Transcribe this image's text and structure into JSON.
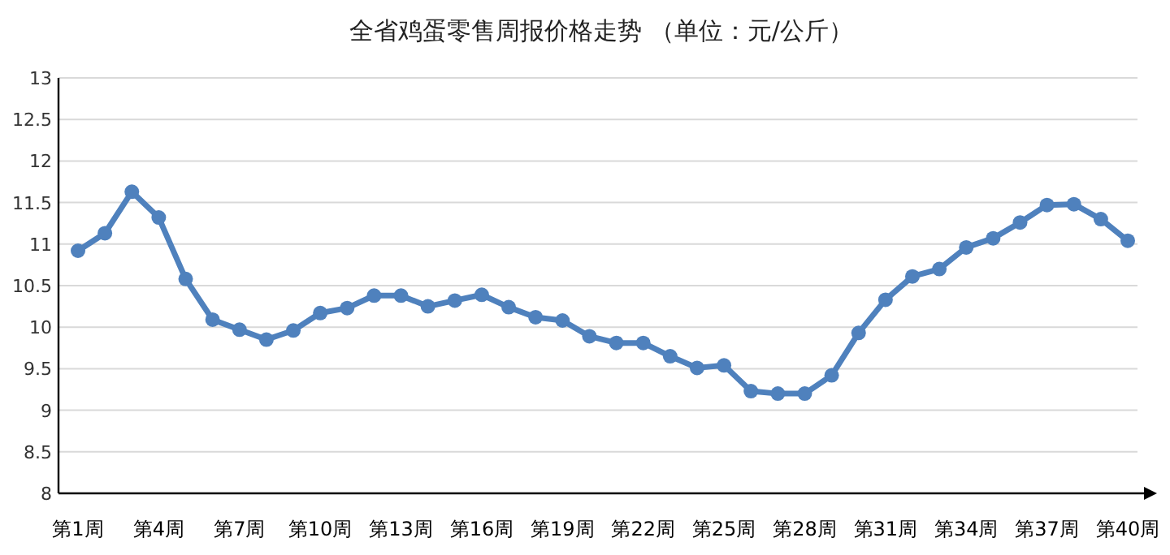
{
  "chart_data": {
    "type": "line",
    "title": "全省鸡蛋零售周报价格走势    （单位：元/公斤）",
    "categories": [
      "第1周",
      null,
      null,
      "第4周",
      null,
      null,
      "第7周",
      null,
      null,
      "第10周",
      null,
      null,
      "第13周",
      null,
      null,
      "第16周",
      null,
      null,
      "第19周",
      null,
      null,
      "第22周",
      null,
      null,
      "第25周",
      null,
      null,
      "第28周",
      null,
      null,
      "第31周",
      null,
      null,
      "第34周",
      null,
      null,
      "第37周",
      null,
      null,
      "第40周"
    ],
    "series": [
      {
        "color": "#4f81bd",
        "values": [
          10.92,
          11.13,
          11.63,
          11.32,
          10.58,
          10.09,
          9.97,
          9.85,
          9.96,
          10.17,
          10.23,
          10.38,
          10.38,
          10.25,
          10.32,
          10.39,
          10.24,
          10.12,
          10.08,
          9.89,
          9.81,
          9.81,
          9.65,
          9.51,
          9.54,
          9.23,
          9.2,
          9.2,
          9.42,
          9.93,
          10.33,
          10.61,
          10.7,
          10.96,
          11.07,
          11.26,
          11.47,
          11.48,
          11.3,
          11.04
        ]
      }
    ],
    "ylim": [
      8,
      13
    ],
    "yticks": [
      8,
      8.5,
      9,
      9.5,
      10,
      10.5,
      11,
      11.5,
      12,
      12.5,
      13
    ],
    "grid": "y",
    "marker": "circle",
    "line_style": "solid"
  }
}
